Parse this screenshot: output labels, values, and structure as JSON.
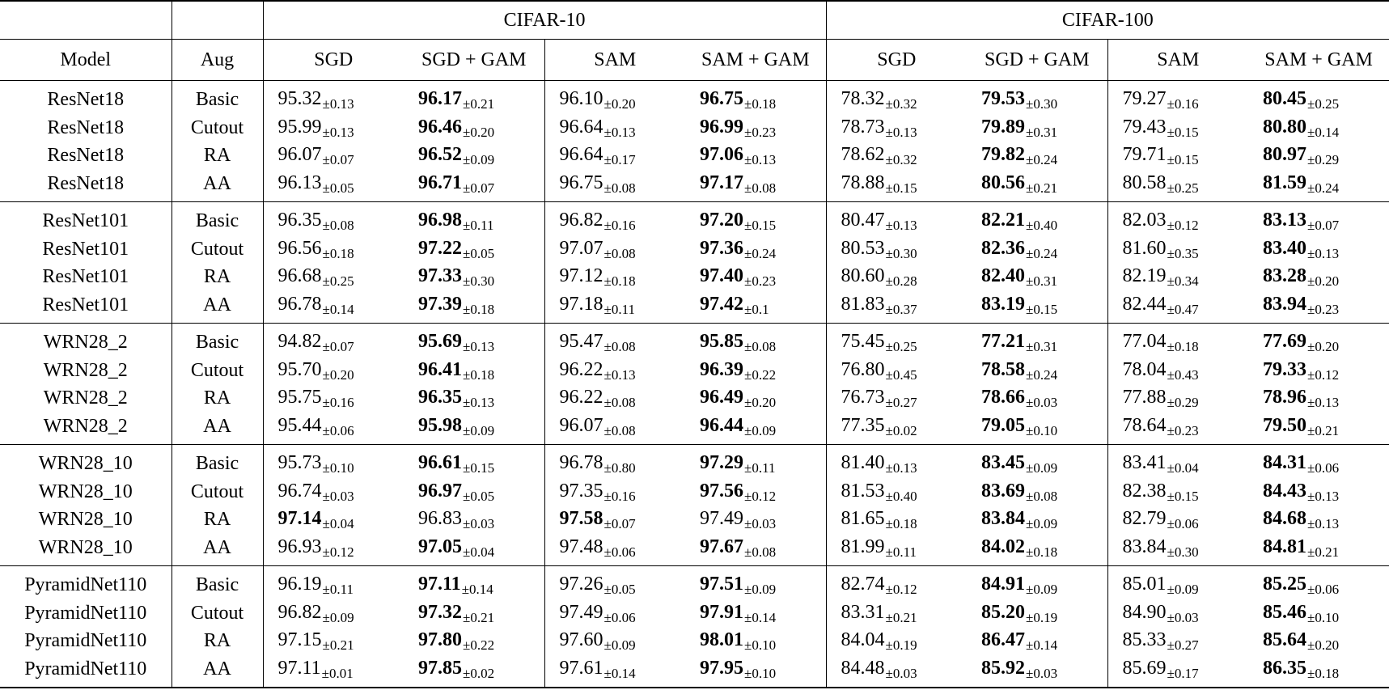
{
  "header": {
    "group_cifar10": "CIFAR-10",
    "group_cifar100": "CIFAR-100",
    "col_model": "Model",
    "col_aug": "Aug",
    "cols": [
      "SGD",
      "SGD + GAM",
      "SAM",
      "SAM + GAM",
      "SGD",
      "SGD + GAM",
      "SAM",
      "SAM + GAM"
    ]
  },
  "groups": [
    {
      "rows": [
        {
          "model": "ResNet18",
          "aug": "Basic",
          "cells": [
            [
              "95.32",
              "±0.13",
              false
            ],
            [
              "96.17",
              "±0.21",
              true
            ],
            [
              "96.10",
              "±0.20",
              false
            ],
            [
              "96.75",
              "±0.18",
              true
            ],
            [
              "78.32",
              "±0.32",
              false
            ],
            [
              "79.53",
              "±0.30",
              true
            ],
            [
              "79.27",
              "±0.16",
              false
            ],
            [
              "80.45",
              "±0.25",
              true
            ]
          ]
        },
        {
          "model": "ResNet18",
          "aug": "Cutout",
          "cells": [
            [
              "95.99",
              "±0.13",
              false
            ],
            [
              "96.46",
              "±0.20",
              true
            ],
            [
              "96.64",
              "±0.13",
              false
            ],
            [
              "96.99",
              "±0.23",
              true
            ],
            [
              "78.73",
              "±0.13",
              false
            ],
            [
              "79.89",
              "±0.31",
              true
            ],
            [
              "79.43",
              "±0.15",
              false
            ],
            [
              "80.80",
              "±0.14",
              true
            ]
          ]
        },
        {
          "model": "ResNet18",
          "aug": "RA",
          "cells": [
            [
              "96.07",
              "±0.07",
              false
            ],
            [
              "96.52",
              "±0.09",
              true
            ],
            [
              "96.64",
              "±0.17",
              false
            ],
            [
              "97.06",
              "±0.13",
              true
            ],
            [
              "78.62",
              "±0.32",
              false
            ],
            [
              "79.82",
              "±0.24",
              true
            ],
            [
              "79.71",
              "±0.15",
              false
            ],
            [
              "80.97",
              "±0.29",
              true
            ]
          ]
        },
        {
          "model": "ResNet18",
          "aug": "AA",
          "cells": [
            [
              "96.13",
              "±0.05",
              false
            ],
            [
              "96.71",
              "±0.07",
              true
            ],
            [
              "96.75",
              "±0.08",
              false
            ],
            [
              "97.17",
              "±0.08",
              true
            ],
            [
              "78.88",
              "±0.15",
              false
            ],
            [
              "80.56",
              "±0.21",
              true
            ],
            [
              "80.58",
              "±0.25",
              false
            ],
            [
              "81.59",
              "±0.24",
              true
            ]
          ]
        }
      ]
    },
    {
      "rows": [
        {
          "model": "ResNet101",
          "aug": "Basic",
          "cells": [
            [
              "96.35",
              "±0.08",
              false
            ],
            [
              "96.98",
              "±0.11",
              true
            ],
            [
              "96.82",
              "±0.16",
              false
            ],
            [
              "97.20",
              "±0.15",
              true
            ],
            [
              "80.47",
              "±0.13",
              false
            ],
            [
              "82.21",
              "±0.40",
              true
            ],
            [
              "82.03",
              "±0.12",
              false
            ],
            [
              "83.13",
              "±0.07",
              true
            ]
          ]
        },
        {
          "model": "ResNet101",
          "aug": "Cutout",
          "cells": [
            [
              "96.56",
              "±0.18",
              false
            ],
            [
              "97.22",
              "±0.05",
              true
            ],
            [
              "97.07",
              "±0.08",
              false
            ],
            [
              "97.36",
              "±0.24",
              true
            ],
            [
              "80.53",
              "±0.30",
              false
            ],
            [
              "82.36",
              "±0.24",
              true
            ],
            [
              "81.60",
              "±0.35",
              false
            ],
            [
              "83.40",
              "±0.13",
              true
            ]
          ]
        },
        {
          "model": "ResNet101",
          "aug": "RA",
          "cells": [
            [
              "96.68",
              "±0.25",
              false
            ],
            [
              "97.33",
              "±0.30",
              true
            ],
            [
              "97.12",
              "±0.18",
              false
            ],
            [
              "97.40",
              "±0.23",
              true
            ],
            [
              "80.60",
              "±0.28",
              false
            ],
            [
              "82.40",
              "±0.31",
              true
            ],
            [
              "82.19",
              "±0.34",
              false
            ],
            [
              "83.28",
              "±0.20",
              true
            ]
          ]
        },
        {
          "model": "ResNet101",
          "aug": "AA",
          "cells": [
            [
              "96.78",
              "±0.14",
              false
            ],
            [
              "97.39",
              "±0.18",
              true
            ],
            [
              "97.18",
              "±0.11",
              false
            ],
            [
              "97.42",
              "±0.1",
              true
            ],
            [
              "81.83",
              "±0.37",
              false
            ],
            [
              "83.19",
              "±0.15",
              true
            ],
            [
              "82.44",
              "±0.47",
              false
            ],
            [
              "83.94",
              "±0.23",
              true
            ]
          ]
        }
      ]
    },
    {
      "rows": [
        {
          "model": "WRN28_2",
          "aug": "Basic",
          "cells": [
            [
              "94.82",
              "±0.07",
              false
            ],
            [
              "95.69",
              "±0.13",
              true
            ],
            [
              "95.47",
              "±0.08",
              false
            ],
            [
              "95.85",
              "±0.08",
              true
            ],
            [
              "75.45",
              "±0.25",
              false
            ],
            [
              "77.21",
              "±0.31",
              true
            ],
            [
              "77.04",
              "±0.18",
              false
            ],
            [
              "77.69",
              "±0.20",
              true
            ]
          ]
        },
        {
          "model": "WRN28_2",
          "aug": "Cutout",
          "cells": [
            [
              "95.70",
              "±0.20",
              false
            ],
            [
              "96.41",
              "±0.18",
              true
            ],
            [
              "96.22",
              "±0.13",
              false
            ],
            [
              "96.39",
              "±0.22",
              true
            ],
            [
              "76.80",
              "±0.45",
              false
            ],
            [
              "78.58",
              "±0.24",
              true
            ],
            [
              "78.04",
              "±0.43",
              false
            ],
            [
              "79.33",
              "±0.12",
              true
            ]
          ]
        },
        {
          "model": "WRN28_2",
          "aug": "RA",
          "cells": [
            [
              "95.75",
              "±0.16",
              false
            ],
            [
              "96.35",
              "±0.13",
              true
            ],
            [
              "96.22",
              "±0.08",
              false
            ],
            [
              "96.49",
              "±0.20",
              true
            ],
            [
              "76.73",
              "±0.27",
              false
            ],
            [
              "78.66",
              "±0.03",
              true
            ],
            [
              "77.88",
              "±0.29",
              false
            ],
            [
              "78.96",
              "±0.13",
              true
            ]
          ]
        },
        {
          "model": "WRN28_2",
          "aug": "AA",
          "cells": [
            [
              "95.44",
              "±0.06",
              false
            ],
            [
              "95.98",
              "±0.09",
              true
            ],
            [
              "96.07",
              "±0.08",
              false
            ],
            [
              "96.44",
              "±0.09",
              true
            ],
            [
              "77.35",
              "±0.02",
              false
            ],
            [
              "79.05",
              "±0.10",
              true
            ],
            [
              "78.64",
              "±0.23",
              false
            ],
            [
              "79.50",
              "±0.21",
              true
            ]
          ]
        }
      ]
    },
    {
      "rows": [
        {
          "model": "WRN28_10",
          "aug": "Basic",
          "cells": [
            [
              "95.73",
              "±0.10",
              false
            ],
            [
              "96.61",
              "±0.15",
              true
            ],
            [
              "96.78",
              "±0.80",
              false
            ],
            [
              "97.29",
              "±0.11",
              true
            ],
            [
              "81.40",
              "±0.13",
              false
            ],
            [
              "83.45",
              "±0.09",
              true
            ],
            [
              "83.41",
              "±0.04",
              false
            ],
            [
              "84.31",
              "±0.06",
              true
            ]
          ]
        },
        {
          "model": "WRN28_10",
          "aug": "Cutout",
          "cells": [
            [
              "96.74",
              "±0.03",
              false
            ],
            [
              "96.97",
              "±0.05",
              true
            ],
            [
              "97.35",
              "±0.16",
              false
            ],
            [
              "97.56",
              "±0.12",
              true
            ],
            [
              "81.53",
              "±0.40",
              false
            ],
            [
              "83.69",
              "±0.08",
              true
            ],
            [
              "82.38",
              "±0.15",
              false
            ],
            [
              "84.43",
              "±0.13",
              true
            ]
          ]
        },
        {
          "model": "WRN28_10",
          "aug": "RA",
          "cells": [
            [
              "97.14",
              "±0.04",
              true
            ],
            [
              "96.83",
              "±0.03",
              false
            ],
            [
              "97.58",
              "±0.07",
              true
            ],
            [
              "97.49",
              "±0.03",
              false
            ],
            [
              "81.65",
              "±0.18",
              false
            ],
            [
              "83.84",
              "±0.09",
              true
            ],
            [
              "82.79",
              "±0.06",
              false
            ],
            [
              "84.68",
              "±0.13",
              true
            ]
          ]
        },
        {
          "model": "WRN28_10",
          "aug": "AA",
          "cells": [
            [
              "96.93",
              "±0.12",
              false
            ],
            [
              "97.05",
              "±0.04",
              true
            ],
            [
              "97.48",
              "±0.06",
              false
            ],
            [
              "97.67",
              "±0.08",
              true
            ],
            [
              "81.99",
              "±0.11",
              false
            ],
            [
              "84.02",
              "±0.18",
              true
            ],
            [
              "83.84",
              "±0.30",
              false
            ],
            [
              "84.81",
              "±0.21",
              true
            ]
          ]
        }
      ]
    },
    {
      "rows": [
        {
          "model": "PyramidNet110",
          "aug": "Basic",
          "cells": [
            [
              "96.19",
              "±0.11",
              false
            ],
            [
              "97.11",
              "±0.14",
              true
            ],
            [
              "97.26",
              "±0.05",
              false
            ],
            [
              "97.51",
              "±0.09",
              true
            ],
            [
              "82.74",
              "±0.12",
              false
            ],
            [
              "84.91",
              "±0.09",
              true
            ],
            [
              "85.01",
              "±0.09",
              false
            ],
            [
              "85.25",
              "±0.06",
              true
            ]
          ]
        },
        {
          "model": "PyramidNet110",
          "aug": "Cutout",
          "cells": [
            [
              "96.82",
              "±0.09",
              false
            ],
            [
              "97.32",
              "±0.21",
              true
            ],
            [
              "97.49",
              "±0.06",
              false
            ],
            [
              "97.91",
              "±0.14",
              true
            ],
            [
              "83.31",
              "±0.21",
              false
            ],
            [
              "85.20",
              "±0.19",
              true
            ],
            [
              "84.90",
              "±0.03",
              false
            ],
            [
              "85.46",
              "±0.10",
              true
            ]
          ]
        },
        {
          "model": "PyramidNet110",
          "aug": "RA",
          "cells": [
            [
              "97.15",
              "±0.21",
              false
            ],
            [
              "97.80",
              "±0.22",
              true
            ],
            [
              "97.60",
              "±0.09",
              false
            ],
            [
              "98.01",
              "±0.10",
              true
            ],
            [
              "84.04",
              "±0.19",
              false
            ],
            [
              "86.47",
              "±0.14",
              true
            ],
            [
              "85.33",
              "±0.27",
              false
            ],
            [
              "85.64",
              "±0.20",
              true
            ]
          ]
        },
        {
          "model": "PyramidNet110",
          "aug": "AA",
          "cells": [
            [
              "97.11",
              "±0.01",
              false
            ],
            [
              "97.85",
              "±0.02",
              true
            ],
            [
              "97.61",
              "±0.14",
              false
            ],
            [
              "97.95",
              "±0.10",
              true
            ],
            [
              "84.48",
              "±0.03",
              false
            ],
            [
              "85.92",
              "±0.03",
              true
            ],
            [
              "85.69",
              "±0.17",
              false
            ],
            [
              "86.35",
              "±0.18",
              true
            ]
          ]
        }
      ]
    }
  ]
}
